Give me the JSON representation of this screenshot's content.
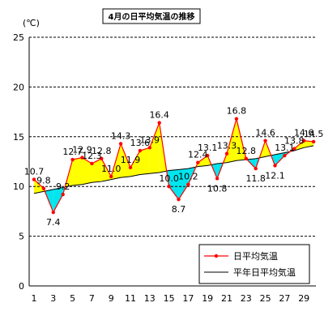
{
  "chart_data": {
    "type": "line",
    "title": "4月の日平均気温の推移",
    "ylabel": "(℃)",
    "xlabel": "",
    "ylim": [
      0,
      25
    ],
    "y_ticks": [
      0,
      5,
      10,
      15,
      20,
      25
    ],
    "x_tick_labels": [
      "1",
      "3",
      "5",
      "7",
      "9",
      "11",
      "13",
      "15",
      "17",
      "19",
      "21",
      "23",
      "25",
      "27",
      "29"
    ],
    "grid": "horizontal dashed",
    "legend_position": "bottom-right",
    "x": [
      1,
      2,
      3,
      4,
      5,
      6,
      7,
      8,
      9,
      10,
      11,
      12,
      13,
      14,
      15,
      16,
      17,
      18,
      19,
      20,
      21,
      22,
      23,
      24,
      25,
      26,
      27,
      28,
      29,
      30
    ],
    "series": [
      {
        "name": "日平均気温",
        "color": "#ff0000",
        "values": [
          10.7,
          9.8,
          7.4,
          9.2,
          12.7,
          12.9,
          12.3,
          12.8,
          11.0,
          14.3,
          11.9,
          13.6,
          13.9,
          16.4,
          10.0,
          8.7,
          10.2,
          12.4,
          13.1,
          10.8,
          13.3,
          16.8,
          12.8,
          11.8,
          14.6,
          12.1,
          13.1,
          13.8,
          14.6,
          14.5
        ],
        "labels": [
          "10.7",
          "9.8",
          "7.4",
          "9.2",
          "12.7",
          "12.9",
          "12.3",
          "12.8",
          "11.0",
          "14.3",
          "11.9",
          "13.6",
          "13.9",
          "16.4",
          "10.0",
          "8.7",
          "10.2",
          "12.4",
          "13.1",
          "10.8",
          "13.3",
          "16.8",
          "12.8",
          "11.8",
          "14.6",
          "12.1",
          "13.1",
          "13.8",
          "14.6",
          "14.5"
        ]
      },
      {
        "name": "平年日平均気温",
        "color": "#000000",
        "values": [
          9.3,
          9.5,
          9.7,
          9.9,
          10.1,
          10.2,
          10.4,
          10.5,
          10.7,
          10.9,
          11.0,
          11.2,
          11.3,
          11.4,
          11.6,
          11.7,
          11.8,
          12.0,
          12.1,
          12.3,
          12.4,
          12.6,
          12.7,
          12.8,
          13.0,
          13.2,
          13.4,
          13.6,
          13.9,
          14.1
        ]
      }
    ],
    "fill_above_color": "#ffff00",
    "fill_below_color": "#00e5ee"
  }
}
